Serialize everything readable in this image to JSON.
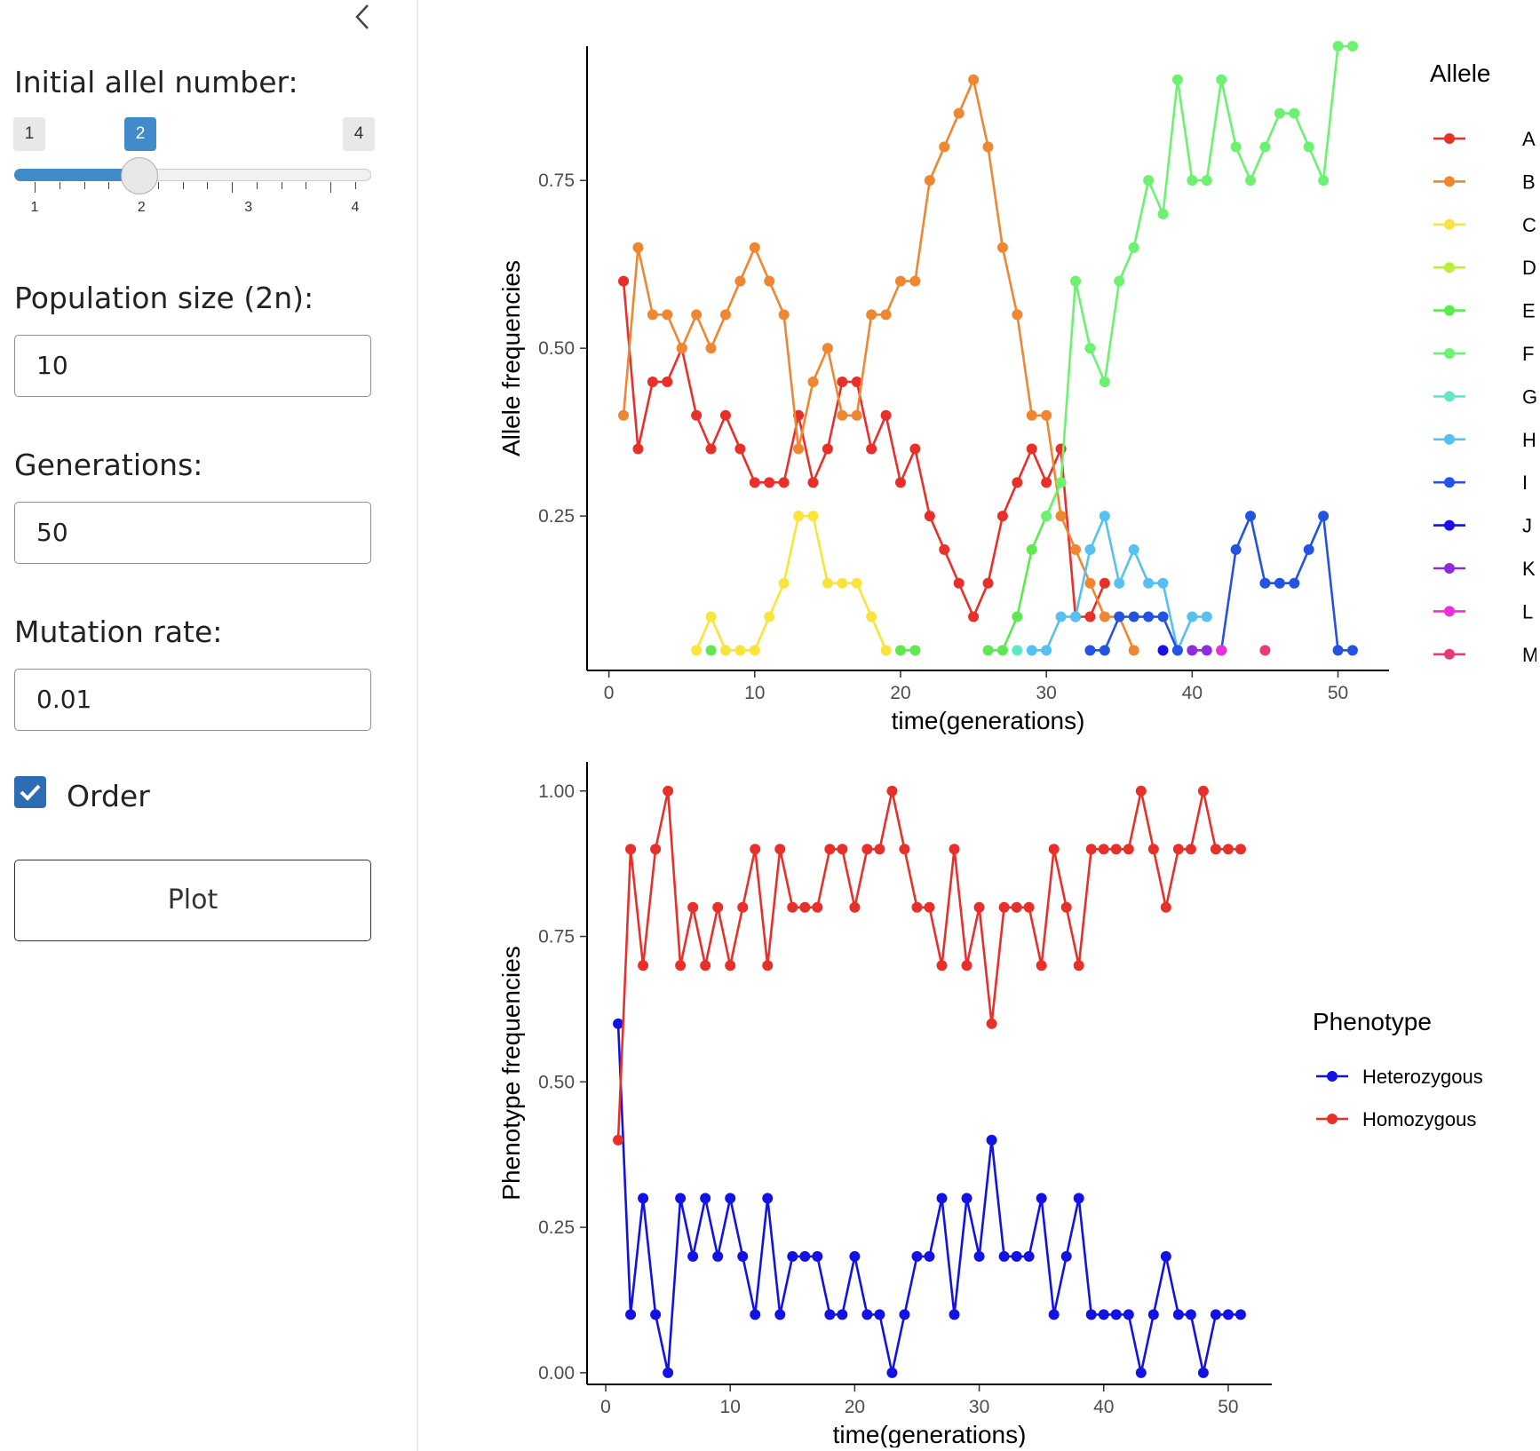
{
  "sidebar": {
    "collapse_icon": "chevron-left-icon",
    "allele_label": "Initial allel number:",
    "slider": {
      "min_label": "1",
      "value_label": "2",
      "max_label": "4",
      "min": 1,
      "max": 4,
      "value": 2,
      "tick_labels": [
        "1",
        "2",
        "3",
        "4"
      ]
    },
    "population_label": "Population size (2n):",
    "population_value": "10",
    "generations_label": "Generations:",
    "generations_value": "50",
    "mutation_label": "Mutation rate:",
    "mutation_value": "0.01",
    "order_label": "Order",
    "order_checked": true,
    "plot_button": "Plot"
  },
  "chart_data": [
    {
      "type": "line",
      "xlabel": "time(generations)",
      "ylabel": "Allele frequencies",
      "legend_title": "Allele",
      "legend_position": "right",
      "xlim": [
        -1.5,
        53.5
      ],
      "ylim": [
        0.02,
        0.95
      ],
      "xticks": [
        0,
        10,
        20,
        30,
        40,
        50
      ],
      "yticks": [
        0.25,
        0.5,
        0.75
      ],
      "ytick_labels": [
        "0.25",
        "0.50",
        "0.75"
      ],
      "grid": false,
      "series": [
        {
          "name": "A",
          "color": "#e8302a",
          "x": [
            1,
            2,
            3,
            4,
            5,
            6,
            7,
            8,
            9,
            10,
            11,
            12,
            13,
            14,
            15,
            16,
            17,
            18,
            19,
            20,
            21,
            22,
            23,
            24,
            25,
            26,
            27,
            28,
            29,
            30,
            31,
            32,
            33,
            34
          ],
          "y": [
            0.6,
            0.35,
            0.45,
            0.45,
            0.5,
            0.4,
            0.35,
            0.4,
            0.35,
            0.3,
            0.3,
            0.3,
            0.4,
            0.3,
            0.35,
            0.45,
            0.45,
            0.35,
            0.4,
            0.3,
            0.35,
            0.25,
            0.2,
            0.15,
            0.1,
            0.15,
            0.25,
            0.3,
            0.35,
            0.3,
            0.35,
            0.1,
            0.1,
            0.15
          ]
        },
        {
          "name": "B",
          "color": "#ef8632",
          "x": [
            1,
            2,
            3,
            4,
            5,
            6,
            7,
            8,
            9,
            10,
            11,
            12,
            13,
            14,
            15,
            16,
            17,
            18,
            19,
            20,
            21,
            22,
            23,
            24,
            25,
            26,
            27,
            28,
            29,
            30,
            31,
            32,
            33,
            34,
            35,
            36
          ],
          "y": [
            0.4,
            0.65,
            0.55,
            0.55,
            0.5,
            0.55,
            0.5,
            0.55,
            0.6,
            0.65,
            0.6,
            0.55,
            0.35,
            0.45,
            0.5,
            0.4,
            0.4,
            0.55,
            0.55,
            0.6,
            0.6,
            0.75,
            0.8,
            0.85,
            0.9,
            0.8,
            0.65,
            0.55,
            0.4,
            0.4,
            0.25,
            0.2,
            0.15,
            0.1,
            0.1,
            0.05
          ]
        },
        {
          "name": "C",
          "color": "#f9e43b",
          "x": [
            6,
            7,
            8,
            9,
            10,
            11,
            12,
            13,
            14,
            15,
            16,
            17,
            18,
            19
          ],
          "y": [
            0.05,
            0.1,
            0.05,
            0.05,
            0.05,
            0.1,
            0.15,
            0.25,
            0.25,
            0.15,
            0.15,
            0.15,
            0.1,
            0.05
          ]
        },
        {
          "name": "D",
          "color": "#b7ee40",
          "x": [],
          "y": []
        },
        {
          "name": "E",
          "color": "#5fe852",
          "x": [
            7,
            20,
            21,
            26,
            27,
            28,
            29,
            30,
            31
          ],
          "y": [
            0.05,
            0.05,
            0.05,
            0.05,
            0.05,
            0.1,
            0.2,
            0.25,
            0.3
          ],
          "segments": [
            [
              0,
              0
            ],
            [
              1,
              2
            ],
            [
              3,
              8
            ]
          ]
        },
        {
          "name": "F",
          "color": "#6cf270",
          "x": [
            30,
            31,
            32,
            33,
            34,
            35,
            36,
            37,
            38,
            39,
            40,
            41,
            42,
            43,
            44,
            45,
            46,
            47,
            48,
            49,
            50,
            51
          ],
          "y": [
            0.25,
            0.3,
            0.6,
            0.5,
            0.45,
            0.6,
            0.65,
            0.75,
            0.7,
            0.9,
            0.75,
            0.75,
            0.9,
            0.8,
            0.75,
            0.8,
            0.85,
            0.85,
            0.8,
            0.75,
            0.95,
            0.95
          ]
        },
        {
          "name": "G",
          "color": "#5fe8c4",
          "x": [
            28
          ],
          "y": [
            0.05
          ]
        },
        {
          "name": "H",
          "color": "#57c0f0",
          "x": [
            29,
            30,
            31,
            32,
            33,
            34,
            35,
            36,
            37,
            38,
            39,
            40,
            41
          ],
          "y": [
            0.05,
            0.05,
            0.1,
            0.1,
            0.2,
            0.25,
            0.15,
            0.2,
            0.15,
            0.15,
            0.05,
            0.1,
            0.1
          ]
        },
        {
          "name": "I",
          "color": "#2353e0",
          "x": [
            33,
            34,
            35,
            36,
            37,
            38,
            39,
            42,
            43,
            44,
            45,
            46,
            47,
            48,
            49,
            50,
            51
          ],
          "y": [
            0.05,
            0.05,
            0.1,
            0.1,
            0.1,
            0.1,
            0.05,
            0.05,
            0.2,
            0.25,
            0.15,
            0.15,
            0.15,
            0.2,
            0.25,
            0.05,
            0.05
          ],
          "segments": [
            [
              0,
              6
            ],
            [
              7,
              16
            ]
          ]
        },
        {
          "name": "J",
          "color": "#1a10e0",
          "x": [
            38
          ],
          "y": [
            0.05
          ]
        },
        {
          "name": "K",
          "color": "#8e2ce0",
          "x": [
            40,
            41
          ],
          "y": [
            0.05,
            0.05
          ]
        },
        {
          "name": "L",
          "color": "#ee2fd9",
          "x": [
            42
          ],
          "y": [
            0.05
          ]
        },
        {
          "name": "M",
          "color": "#e83a78",
          "x": [
            45
          ],
          "y": [
            0.05
          ]
        }
      ]
    },
    {
      "type": "line",
      "xlabel": "time(generations)",
      "ylabel": "Phenotype frequencies",
      "legend_title": "Phenotype",
      "legend_position": "right",
      "xlim": [
        -1.5,
        53.5
      ],
      "ylim": [
        -0.02,
        1.05
      ],
      "xticks": [
        0,
        10,
        20,
        30,
        40,
        50
      ],
      "yticks": [
        0,
        0.25,
        0.5,
        0.75,
        1.0
      ],
      "ytick_labels": [
        "0.00",
        "0.25",
        "0.50",
        "0.75",
        "1.00"
      ],
      "grid": false,
      "series": [
        {
          "name": "Heterozygous",
          "color": "#1212e6",
          "x": [
            1,
            2,
            3,
            4,
            5,
            6,
            7,
            8,
            9,
            10,
            11,
            12,
            13,
            14,
            15,
            16,
            17,
            18,
            19,
            20,
            21,
            22,
            23,
            24,
            25,
            26,
            27,
            28,
            29,
            30,
            31,
            32,
            33,
            34,
            35,
            36,
            37,
            38,
            39,
            40,
            41,
            42,
            43,
            44,
            45,
            46,
            47,
            48,
            49,
            50,
            51
          ],
          "y": [
            0.6,
            0.1,
            0.3,
            0.1,
            0.0,
            0.3,
            0.2,
            0.3,
            0.2,
            0.3,
            0.2,
            0.1,
            0.3,
            0.1,
            0.2,
            0.2,
            0.2,
            0.1,
            0.1,
            0.2,
            0.1,
            0.1,
            0.0,
            0.1,
            0.2,
            0.2,
            0.3,
            0.1,
            0.3,
            0.2,
            0.4,
            0.2,
            0.2,
            0.2,
            0.3,
            0.1,
            0.2,
            0.3,
            0.1,
            0.1,
            0.1,
            0.1,
            0.0,
            0.1,
            0.2,
            0.1,
            0.1,
            0.0,
            0.1,
            0.1,
            0.1
          ]
        },
        {
          "name": "Homozygous",
          "color": "#e8302a",
          "x": [
            1,
            2,
            3,
            4,
            5,
            6,
            7,
            8,
            9,
            10,
            11,
            12,
            13,
            14,
            15,
            16,
            17,
            18,
            19,
            20,
            21,
            22,
            23,
            24,
            25,
            26,
            27,
            28,
            29,
            30,
            31,
            32,
            33,
            34,
            35,
            36,
            37,
            38,
            39,
            40,
            41,
            42,
            43,
            44,
            45,
            46,
            47,
            48,
            49,
            50,
            51
          ],
          "y": [
            0.4,
            0.9,
            0.7,
            0.9,
            1.0,
            0.7,
            0.8,
            0.7,
            0.8,
            0.7,
            0.8,
            0.9,
            0.7,
            0.9,
            0.8,
            0.8,
            0.8,
            0.9,
            0.9,
            0.8,
            0.9,
            0.9,
            1.0,
            0.9,
            0.8,
            0.8,
            0.7,
            0.9,
            0.7,
            0.8,
            0.6,
            0.8,
            0.8,
            0.8,
            0.7,
            0.9,
            0.8,
            0.7,
            0.9,
            0.9,
            0.9,
            0.9,
            1.0,
            0.9,
            0.8,
            0.9,
            0.9,
            1.0,
            0.9,
            0.9,
            0.9
          ]
        }
      ]
    }
  ]
}
